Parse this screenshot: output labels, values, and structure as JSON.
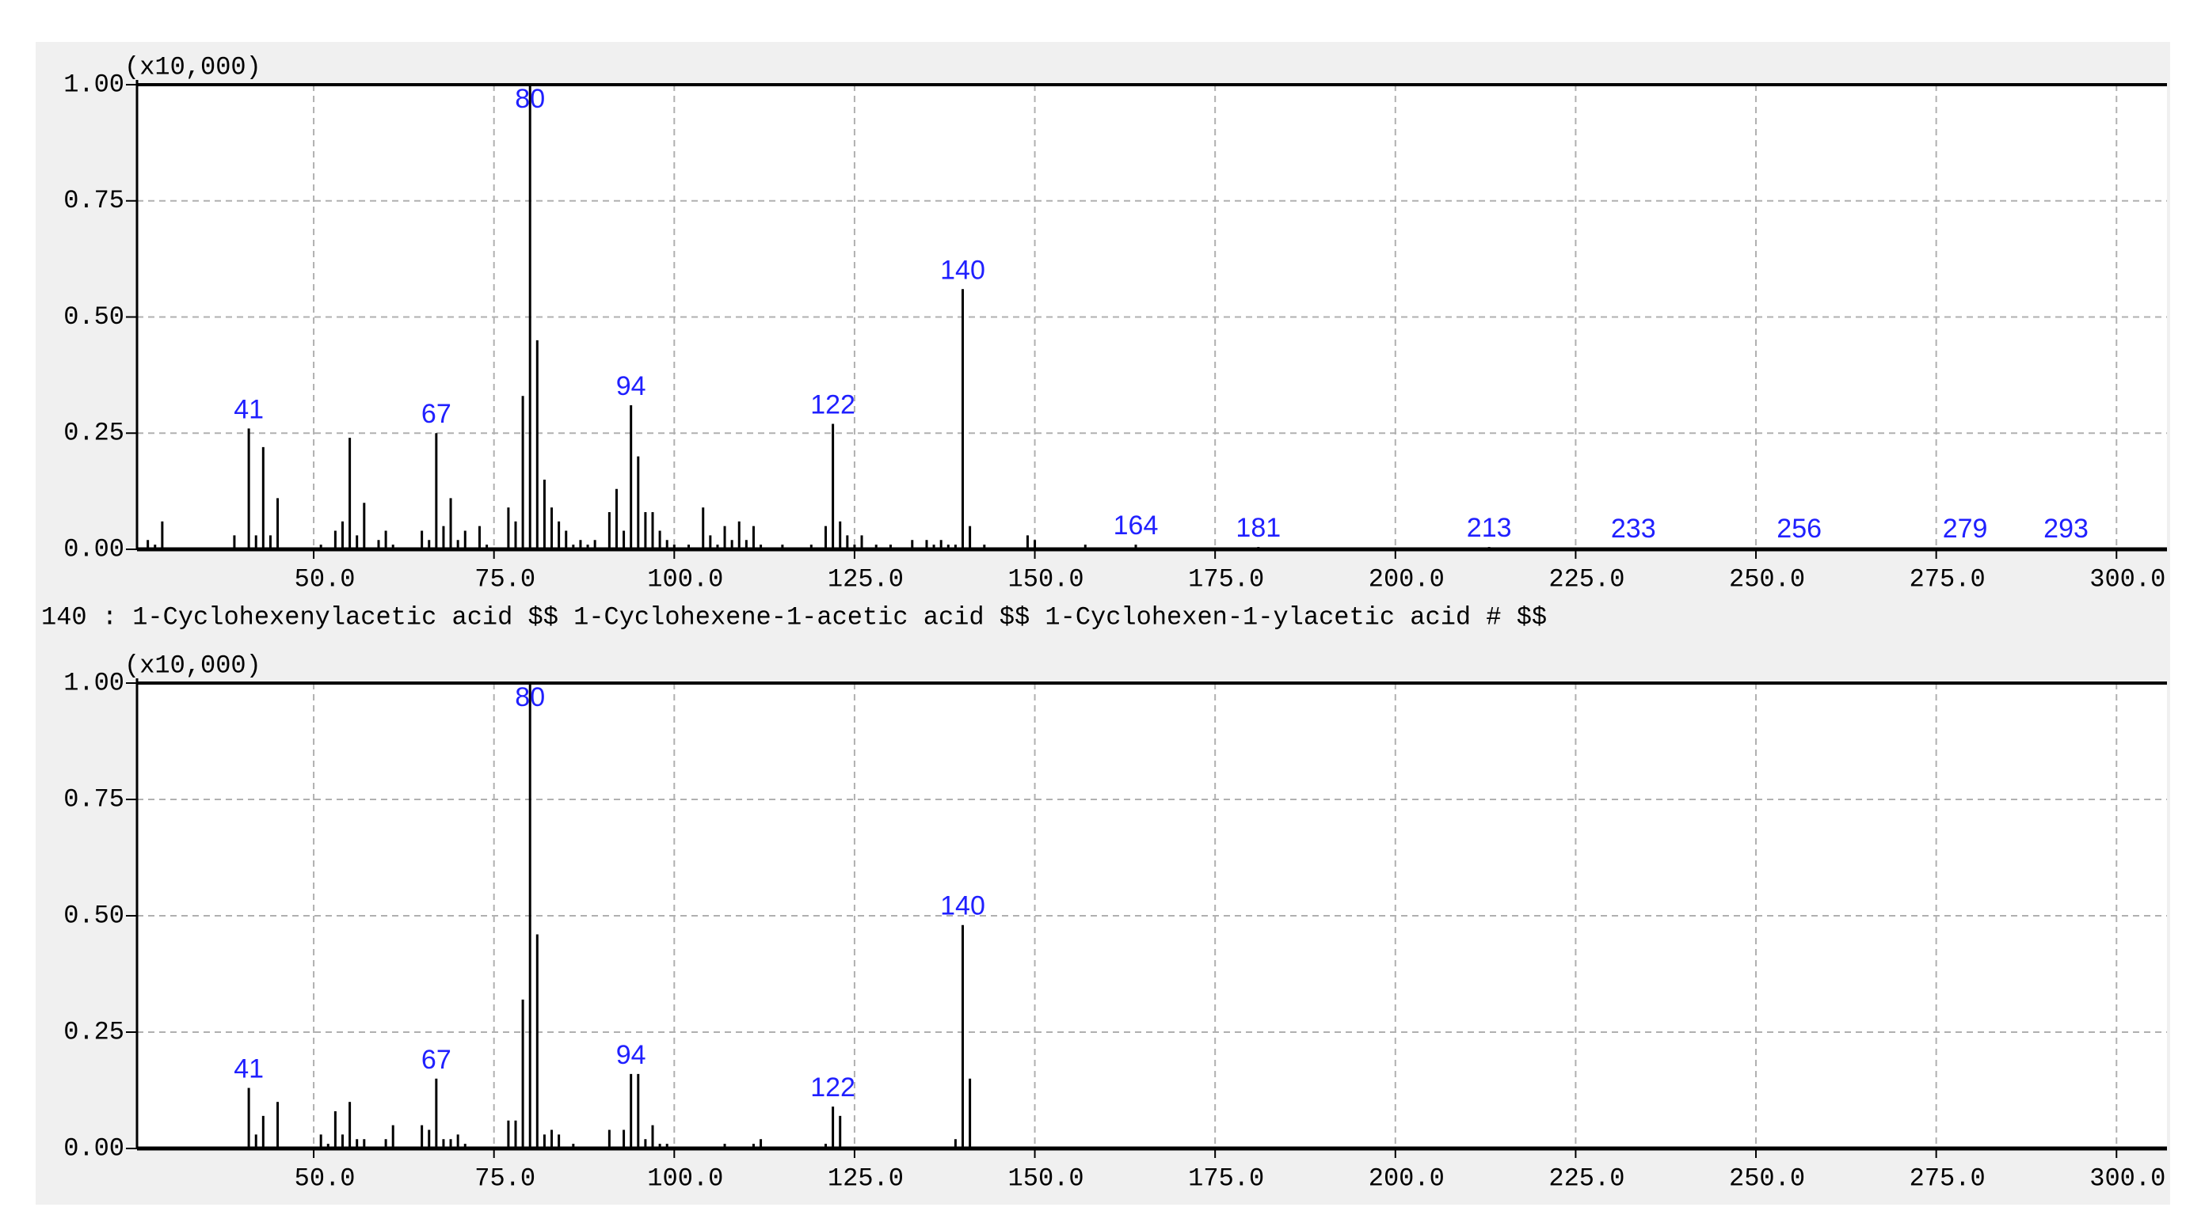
{
  "chart_data": [
    {
      "type": "stem",
      "y_unit": "(x10,000)",
      "x": [
        27,
        28,
        29,
        39,
        41,
        42,
        43,
        44,
        45,
        51,
        53,
        54,
        55,
        56,
        57,
        59,
        60,
        61,
        65,
        66,
        67,
        68,
        69,
        70,
        71,
        73,
        74,
        77,
        78,
        79,
        80,
        81,
        82,
        83,
        84,
        85,
        86,
        87,
        88,
        89,
        91,
        92,
        93,
        94,
        95,
        96,
        97,
        98,
        99,
        100,
        102,
        104,
        105,
        106,
        107,
        108,
        109,
        110,
        111,
        112,
        115,
        119,
        121,
        122,
        123,
        124,
        125,
        126,
        128,
        130,
        133,
        135,
        136,
        137,
        138,
        139,
        140,
        141,
        143,
        149,
        150,
        157,
        164,
        181,
        213,
        233,
        256,
        279,
        293
      ],
      "values": [
        0.02,
        0.01,
        0.06,
        0.03,
        0.26,
        0.03,
        0.22,
        0.03,
        0.11,
        0.01,
        0.04,
        0.06,
        0.24,
        0.03,
        0.1,
        0.02,
        0.04,
        0.01,
        0.04,
        0.02,
        0.25,
        0.05,
        0.11,
        0.02,
        0.04,
        0.05,
        0.01,
        0.09,
        0.06,
        0.33,
        1.0,
        0.45,
        0.15,
        0.09,
        0.06,
        0.04,
        0.01,
        0.02,
        0.01,
        0.02,
        0.08,
        0.13,
        0.04,
        0.31,
        0.2,
        0.08,
        0.08,
        0.04,
        0.02,
        0.01,
        0.01,
        0.09,
        0.03,
        0.01,
        0.05,
        0.02,
        0.06,
        0.02,
        0.05,
        0.01,
        0.01,
        0.01,
        0.05,
        0.27,
        0.06,
        0.03,
        0.01,
        0.03,
        0.01,
        0.01,
        0.02,
        0.02,
        0.01,
        0.02,
        0.01,
        0.01,
        0.56,
        0.05,
        0.01,
        0.03,
        0.02,
        0.01,
        0.01,
        0.005,
        0.005,
        0.003,
        0.003,
        0.003,
        0.003
      ],
      "peak_labels": [
        41,
        67,
        80,
        94,
        122,
        140,
        164,
        181,
        213,
        233,
        256,
        279,
        293
      ],
      "xlim": [
        25.5,
        307
      ],
      "xticks": [
        {
          "value": 50,
          "label": "50.0"
        },
        {
          "value": 75,
          "label": "75.0"
        },
        {
          "value": 100,
          "label": "100.0"
        },
        {
          "value": 125,
          "label": "125.0"
        },
        {
          "value": 150,
          "label": "150.0"
        },
        {
          "value": 175,
          "label": "175.0"
        },
        {
          "value": 200,
          "label": "200.0"
        },
        {
          "value": 225,
          "label": "225.0"
        },
        {
          "value": 250,
          "label": "250.0"
        },
        {
          "value": 275,
          "label": "275.0"
        },
        {
          "value": 300,
          "label": "300.0"
        }
      ],
      "ylim": [
        0,
        1
      ],
      "yticks": [
        {
          "value": 0,
          "label": "0.00"
        },
        {
          "value": 0.25,
          "label": "0.25"
        },
        {
          "value": 0.5,
          "label": "0.50"
        },
        {
          "value": 0.75,
          "label": "0.75"
        },
        {
          "value": 1,
          "label": "1.00"
        }
      ],
      "grid": true,
      "color": "#000000",
      "label_color": "#2020ff"
    },
    {
      "type": "stem",
      "y_unit": "(x10,000)",
      "title": "140 : 1-Cyclohexenylacetic acid $$ 1-Cyclohexene-1-acetic acid $$ 1-Cyclohexen-1-ylacetic acid # $$",
      "x": [
        41,
        42,
        43,
        45,
        51,
        52,
        53,
        54,
        55,
        56,
        57,
        60,
        61,
        65,
        66,
        67,
        68,
        69,
        70,
        71,
        77,
        78,
        79,
        80,
        81,
        82,
        83,
        84,
        86,
        91,
        93,
        94,
        95,
        96,
        97,
        98,
        99,
        107,
        111,
        112,
        121,
        122,
        123,
        139,
        140,
        141
      ],
      "values": [
        0.13,
        0.03,
        0.07,
        0.1,
        0.03,
        0.01,
        0.08,
        0.03,
        0.1,
        0.02,
        0.02,
        0.02,
        0.05,
        0.05,
        0.04,
        0.15,
        0.02,
        0.02,
        0.03,
        0.01,
        0.06,
        0.06,
        0.32,
        1.0,
        0.46,
        0.03,
        0.04,
        0.03,
        0.01,
        0.04,
        0.04,
        0.16,
        0.16,
        0.02,
        0.05,
        0.01,
        0.01,
        0.01,
        0.01,
        0.02,
        0.01,
        0.09,
        0.07,
        0.02,
        0.48,
        0.15
      ],
      "peak_labels": [
        41,
        67,
        80,
        94,
        122,
        140
      ],
      "xlim": [
        25.5,
        307
      ],
      "xticks": [
        {
          "value": 50,
          "label": "50.0"
        },
        {
          "value": 75,
          "label": "75.0"
        },
        {
          "value": 100,
          "label": "100.0"
        },
        {
          "value": 125,
          "label": "125.0"
        },
        {
          "value": 150,
          "label": "150.0"
        },
        {
          "value": 175,
          "label": "175.0"
        },
        {
          "value": 200,
          "label": "200.0"
        },
        {
          "value": 225,
          "label": "225.0"
        },
        {
          "value": 250,
          "label": "250.0"
        },
        {
          "value": 275,
          "label": "275.0"
        },
        {
          "value": 300,
          "label": "300.0"
        }
      ],
      "ylim": [
        0,
        1
      ],
      "yticks": [
        {
          "value": 0,
          "label": "0.00"
        },
        {
          "value": 0.25,
          "label": "0.25"
        },
        {
          "value": 0.5,
          "label": "0.50"
        },
        {
          "value": 0.75,
          "label": "0.75"
        },
        {
          "value": 1,
          "label": "1.00"
        }
      ],
      "grid": true,
      "color": "#000000",
      "label_color": "#2020ff"
    }
  ]
}
